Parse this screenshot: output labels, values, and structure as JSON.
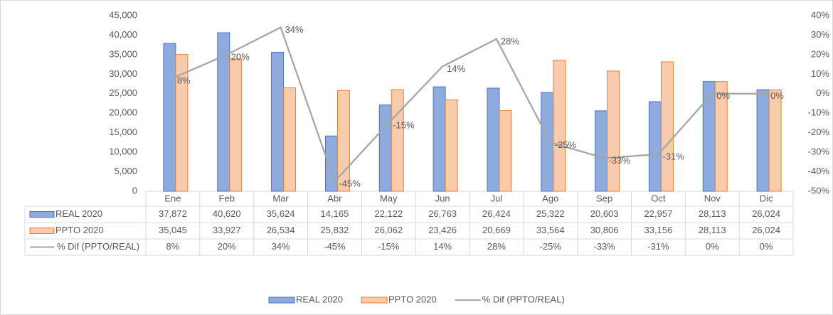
{
  "chart_data": {
    "type": "bar-line",
    "categories": [
      "Ene",
      "Feb",
      "Mar",
      "Abr",
      "May",
      "Jun",
      "Jul",
      "Ago",
      "Sep",
      "Oct",
      "Nov",
      "Dic"
    ],
    "series": [
      {
        "name": "REAL 2020",
        "type": "bar",
        "color": "#8faadc",
        "edge": "#4472c4",
        "values": [
          37872,
          40620,
          35624,
          14165,
          22122,
          26763,
          26424,
          25322,
          20603,
          22957,
          28113,
          26024
        ],
        "value_labels": [
          "37,872",
          "40,620",
          "35,624",
          "14,165",
          "22,122",
          "26,763",
          "26,424",
          "25,322",
          "20,603",
          "22,957",
          "28,113",
          "26,024"
        ]
      },
      {
        "name": "PPTO 2020",
        "type": "bar",
        "color": "#f8cbad",
        "edge": "#ed7d31",
        "values": [
          35045,
          33927,
          26534,
          25832,
          26062,
          23426,
          20669,
          33564,
          30806,
          33156,
          28113,
          26024
        ],
        "value_labels": [
          "35,045",
          "33,927",
          "26,534",
          "25,832",
          "26,062",
          "23,426",
          "20,669",
          "33,564",
          "30,806",
          "33,156",
          "28,113",
          "26,024"
        ]
      },
      {
        "name": "% Dif (PPTO/REAL)",
        "type": "line",
        "axis": "y2",
        "color": "#a5a5a5",
        "values": [
          8,
          20,
          34,
          -45,
          -15,
          14,
          28,
          -25,
          -33,
          -31,
          0,
          0
        ],
        "value_labels": [
          "8%",
          "20%",
          "34%",
          "-45%",
          "-15%",
          "14%",
          "28%",
          "-25%",
          "-33%",
          "-31%",
          "0%",
          "0%"
        ]
      }
    ],
    "ylim": [
      0,
      45000
    ],
    "yticks": [
      0,
      {
        "value": 5000,
        "label": "5,000"
      },
      {
        "value": 10000,
        "label": "10,000"
      },
      {
        "value": 15000,
        "label": "15,000"
      },
      {
        "value": 20000,
        "label": "20,000"
      },
      {
        "value": 25000,
        "label": "25,000"
      },
      {
        "value": 30000,
        "label": "30,000"
      },
      {
        "value": 35000,
        "label": "35,000"
      },
      {
        "value": 40000,
        "label": "40,000"
      },
      {
        "value": 45000,
        "label": "45,000"
      }
    ],
    "y2lim": [
      -50,
      40
    ],
    "y2ticks": [
      {
        "value": -50,
        "label": "-50%"
      },
      {
        "value": -40,
        "label": "-40%"
      },
      {
        "value": -30,
        "label": "-30%"
      },
      {
        "value": -20,
        "label": "-20%"
      },
      {
        "value": -10,
        "label": "-10%"
      },
      {
        "value": 0,
        "label": "0%"
      },
      {
        "value": 10,
        "label": "10%"
      },
      {
        "value": 20,
        "label": "20%"
      },
      {
        "value": 30,
        "label": "30%"
      },
      {
        "value": 40,
        "label": "40%"
      }
    ],
    "legend": "bottom"
  }
}
